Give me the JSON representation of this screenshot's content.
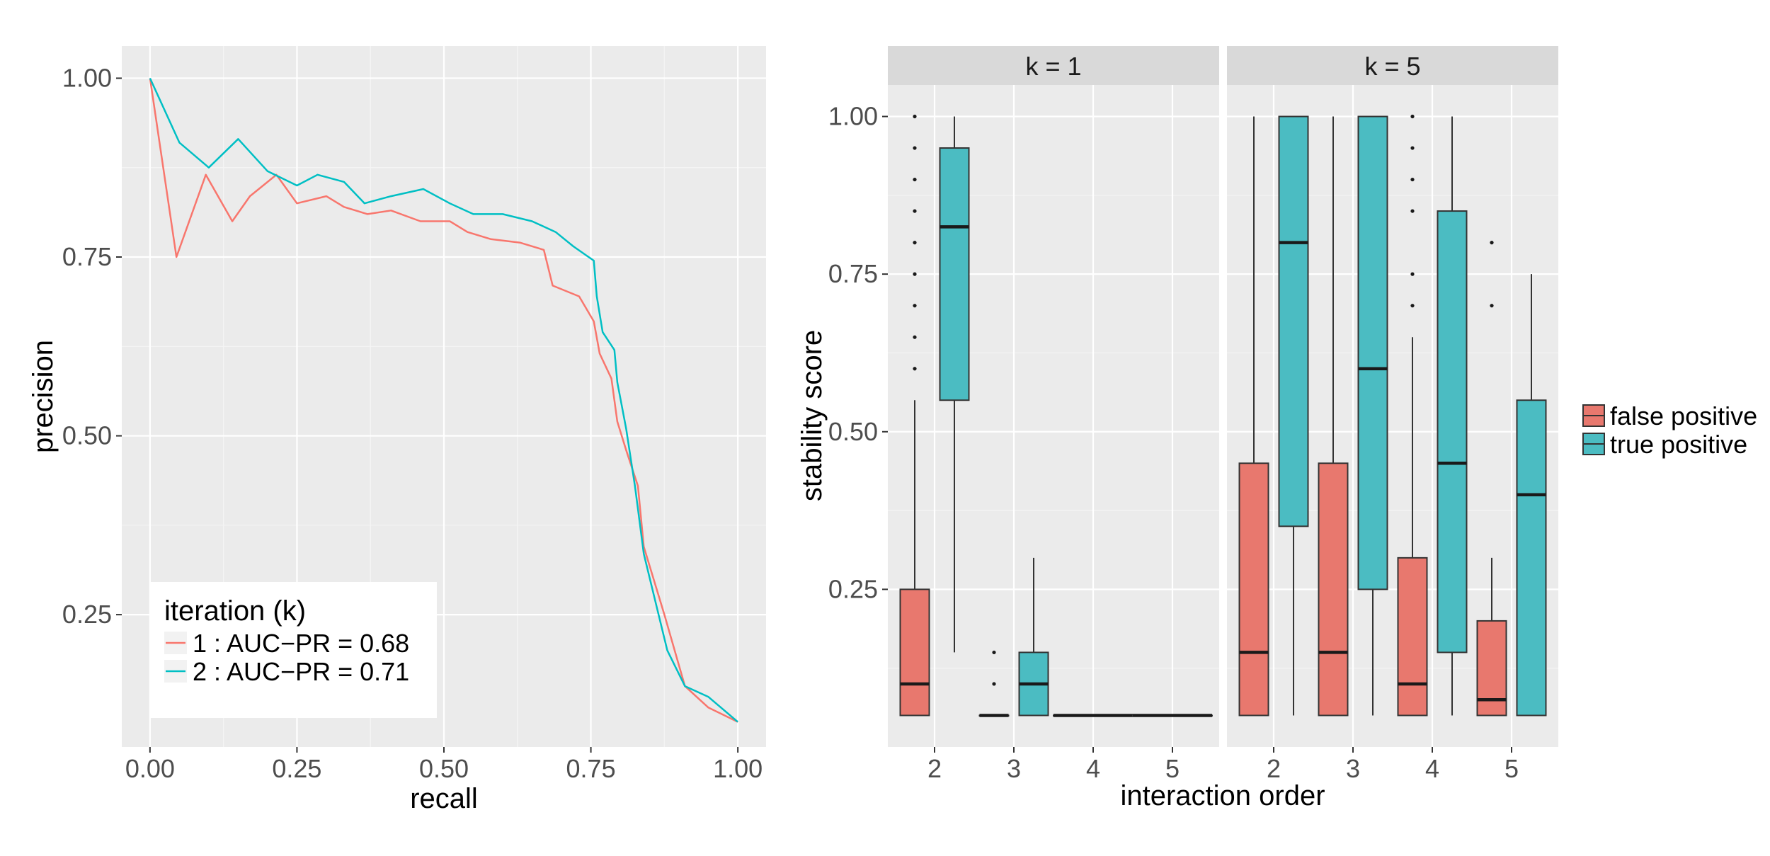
{
  "colors": {
    "panel_bg": "#ebebeb",
    "grid_major": "#ffffff",
    "strip_bg": "#d9d9d9",
    "series_1": "#f8766d",
    "series_2": "#00bfc4",
    "box_fp": "#e8786e",
    "box_tp": "#4bbcc2",
    "outline": "#333333"
  },
  "chart_data": [
    {
      "type": "line",
      "xlabel": "recall",
      "ylabel": "precision",
      "xlim": [
        -0.048,
        1.048
      ],
      "ylim": [
        0.065,
        1.045
      ],
      "x_ticks": [
        0,
        0.25,
        0.5,
        0.75,
        1
      ],
      "x_tick_labels": [
        "0.00",
        "0.25",
        "0.50",
        "0.75",
        "1.00"
      ],
      "y_ticks": [
        0.25,
        0.5,
        0.75,
        1
      ],
      "y_tick_labels": [
        "0.25",
        "0.50",
        "0.75",
        "1.00"
      ],
      "legend": {
        "title": "iteration (k)",
        "position": "bottom-left",
        "entries": [
          "1 : AUC−PR =  0.68",
          "2 : AUC−PR =  0.71"
        ]
      },
      "series": [
        {
          "name": "1",
          "auc_pr": 0.68,
          "points": [
            [
              0,
              1.0
            ],
            [
              0.045,
              0.75
            ],
            [
              0.095,
              0.865
            ],
            [
              0.14,
              0.8
            ],
            [
              0.17,
              0.835
            ],
            [
              0.215,
              0.865
            ],
            [
              0.25,
              0.825
            ],
            [
              0.3,
              0.835
            ],
            [
              0.33,
              0.82
            ],
            [
              0.37,
              0.81
            ],
            [
              0.41,
              0.815
            ],
            [
              0.46,
              0.8
            ],
            [
              0.51,
              0.8
            ],
            [
              0.54,
              0.785
            ],
            [
              0.58,
              0.775
            ],
            [
              0.63,
              0.77
            ],
            [
              0.67,
              0.76
            ],
            [
              0.685,
              0.71
            ],
            [
              0.73,
              0.695
            ],
            [
              0.755,
              0.66
            ],
            [
              0.765,
              0.615
            ],
            [
              0.785,
              0.58
            ],
            [
              0.795,
              0.52
            ],
            [
              0.81,
              0.48
            ],
            [
              0.83,
              0.43
            ],
            [
              0.84,
              0.345
            ],
            [
              0.875,
              0.25
            ],
            [
              0.91,
              0.15
            ],
            [
              0.95,
              0.12
            ],
            [
              1.0,
              0.1
            ]
          ]
        },
        {
          "name": "2",
          "auc_pr": 0.71,
          "points": [
            [
              0,
              1.0
            ],
            [
              0.05,
              0.91
            ],
            [
              0.1,
              0.875
            ],
            [
              0.15,
              0.915
            ],
            [
              0.2,
              0.87
            ],
            [
              0.25,
              0.85
            ],
            [
              0.285,
              0.865
            ],
            [
              0.33,
              0.855
            ],
            [
              0.365,
              0.825
            ],
            [
              0.41,
              0.835
            ],
            [
              0.465,
              0.845
            ],
            [
              0.51,
              0.825
            ],
            [
              0.55,
              0.81
            ],
            [
              0.6,
              0.81
            ],
            [
              0.65,
              0.8
            ],
            [
              0.69,
              0.785
            ],
            [
              0.72,
              0.765
            ],
            [
              0.755,
              0.745
            ],
            [
              0.76,
              0.695
            ],
            [
              0.77,
              0.645
            ],
            [
              0.79,
              0.62
            ],
            [
              0.795,
              0.575
            ],
            [
              0.81,
              0.51
            ],
            [
              0.825,
              0.43
            ],
            [
              0.84,
              0.335
            ],
            [
              0.88,
              0.2
            ],
            [
              0.91,
              0.15
            ],
            [
              0.95,
              0.135
            ],
            [
              1.0,
              0.1
            ]
          ]
        }
      ]
    },
    {
      "type": "boxplot",
      "xlabel": "interaction order",
      "ylabel": "stability score",
      "ylim": [
        0.0,
        1.05
      ],
      "y_ticks": [
        0.25,
        0.5,
        0.75,
        1
      ],
      "y_tick_labels": [
        "0.25",
        "0.50",
        "0.75",
        "1.00"
      ],
      "categories": [
        "2",
        "3",
        "4",
        "5"
      ],
      "legend": {
        "position": "right",
        "entries": [
          {
            "key": "false_positive",
            "label": "false positive"
          },
          {
            "key": "true_positive",
            "label": "true positive"
          }
        ]
      },
      "facets": [
        {
          "label": "k = 1",
          "boxes": [
            {
              "order": "2",
              "group": "false_positive",
              "lower_whisker": 0.05,
              "q1": 0.05,
              "median": 0.1,
              "q3": 0.25,
              "upper_whisker": 0.55,
              "outliers": [
                0.6,
                0.65,
                0.7,
                0.75,
                0.8,
                0.85,
                0.9,
                0.95,
                1.0
              ]
            },
            {
              "order": "2",
              "group": "true_positive",
              "lower_whisker": 0.15,
              "q1": 0.55,
              "median": 0.825,
              "q3": 0.95,
              "upper_whisker": 1.0,
              "outliers": []
            },
            {
              "order": "3",
              "group": "false_positive",
              "lower_whisker": 0.05,
              "q1": 0.05,
              "median": 0.05,
              "q3": 0.05,
              "upper_whisker": 0.05,
              "outliers": [
                0.1,
                0.15
              ]
            },
            {
              "order": "3",
              "group": "true_positive",
              "lower_whisker": 0.05,
              "q1": 0.05,
              "median": 0.1,
              "q3": 0.15,
              "upper_whisker": 0.3,
              "outliers": []
            },
            {
              "order": "4",
              "group": "false_positive",
              "lower_whisker": 0.05,
              "q1": 0.05,
              "median": 0.05,
              "q3": 0.05,
              "upper_whisker": 0.05,
              "outliers": []
            },
            {
              "order": "5",
              "group": "false_positive",
              "lower_whisker": 0.05,
              "q1": 0.05,
              "median": 0.05,
              "q3": 0.05,
              "upper_whisker": 0.05,
              "outliers": []
            }
          ]
        },
        {
          "label": "k = 5",
          "boxes": [
            {
              "order": "2",
              "group": "false_positive",
              "lower_whisker": 0.05,
              "q1": 0.05,
              "median": 0.15,
              "q3": 0.45,
              "upper_whisker": 1.0,
              "outliers": []
            },
            {
              "order": "2",
              "group": "true_positive",
              "lower_whisker": 0.05,
              "q1": 0.35,
              "median": 0.8,
              "q3": 1.0,
              "upper_whisker": 1.0,
              "outliers": []
            },
            {
              "order": "3",
              "group": "false_positive",
              "lower_whisker": 0.05,
              "q1": 0.05,
              "median": 0.15,
              "q3": 0.45,
              "upper_whisker": 1.0,
              "outliers": []
            },
            {
              "order": "3",
              "group": "true_positive",
              "lower_whisker": 0.05,
              "q1": 0.25,
              "median": 0.6,
              "q3": 1.0,
              "upper_whisker": 1.0,
              "outliers": []
            },
            {
              "order": "4",
              "group": "false_positive",
              "lower_whisker": 0.05,
              "q1": 0.05,
              "median": 0.1,
              "q3": 0.3,
              "upper_whisker": 0.65,
              "outliers": [
                0.7,
                0.75,
                0.85,
                0.9,
                0.95,
                1.0
              ]
            },
            {
              "order": "4",
              "group": "true_positive",
              "lower_whisker": 0.05,
              "q1": 0.15,
              "median": 0.45,
              "q3": 0.85,
              "upper_whisker": 1.0,
              "outliers": []
            },
            {
              "order": "5",
              "group": "false_positive",
              "lower_whisker": 0.05,
              "q1": 0.05,
              "median": 0.075,
              "q3": 0.2,
              "upper_whisker": 0.3,
              "outliers": [
                0.7,
                0.8
              ]
            },
            {
              "order": "5",
              "group": "true_positive",
              "lower_whisker": 0.05,
              "q1": 0.05,
              "median": 0.4,
              "q3": 0.55,
              "upper_whisker": 0.75,
              "outliers": []
            }
          ]
        }
      ]
    }
  ]
}
